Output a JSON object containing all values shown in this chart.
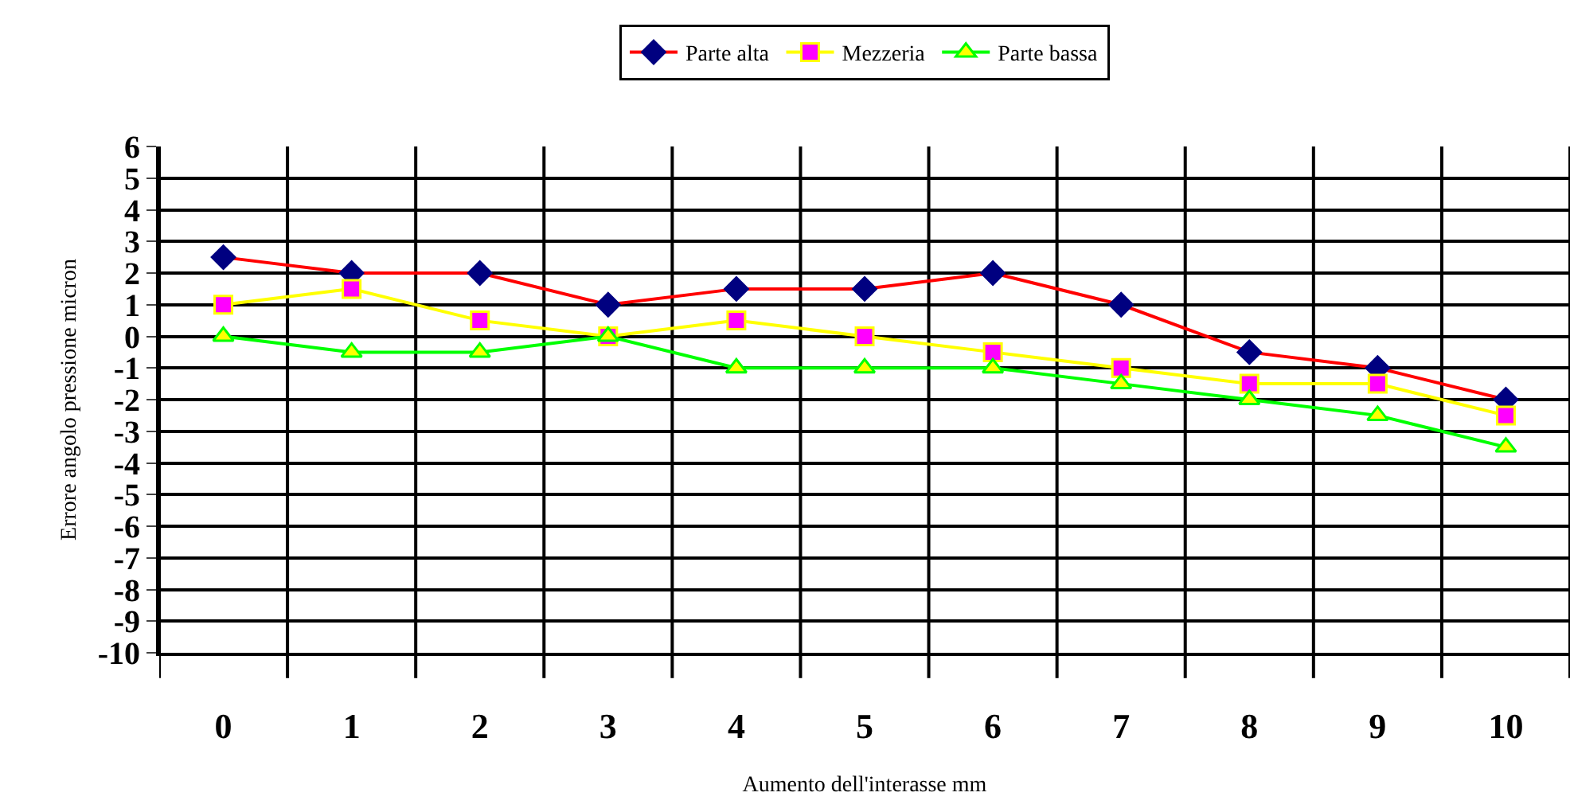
{
  "chart_data": {
    "type": "line",
    "xlabel": "Aumento dell'interasse mm",
    "ylabel": "Errore angolo pressione micron",
    "categories": [
      "0",
      "1",
      "2",
      "3",
      "4",
      "5",
      "6",
      "7",
      "8",
      "9",
      "10"
    ],
    "series": [
      {
        "name": "Parte alta",
        "color": "#ff0000",
        "marker": "diamond",
        "values": [
          2.5,
          2,
          2,
          1,
          1.5,
          1.5,
          2,
          1,
          -0.5,
          -1,
          -2
        ]
      },
      {
        "name": "Mezzeria",
        "color": "#ffff00",
        "marker": "square",
        "values": [
          1,
          1.5,
          0.5,
          0,
          0.5,
          0,
          -0.5,
          -1,
          -1.5,
          -1.5,
          -2.5
        ]
      },
      {
        "name": "Parte bassa",
        "color": "#00ff00",
        "marker": "triangle",
        "values": [
          0,
          -0.5,
          -0.5,
          0,
          -1,
          -1,
          -1,
          -1.5,
          -2,
          -2.5,
          -3.5
        ]
      }
    ],
    "ylim": [
      -10,
      6
    ],
    "yticks": [
      -10,
      -9,
      -8,
      -7,
      -6,
      -5,
      -4,
      -3,
      -2,
      -1,
      0,
      1,
      2,
      3,
      4,
      5,
      6
    ],
    "grid": true,
    "legend": "top",
    "line_style": "solid"
  }
}
